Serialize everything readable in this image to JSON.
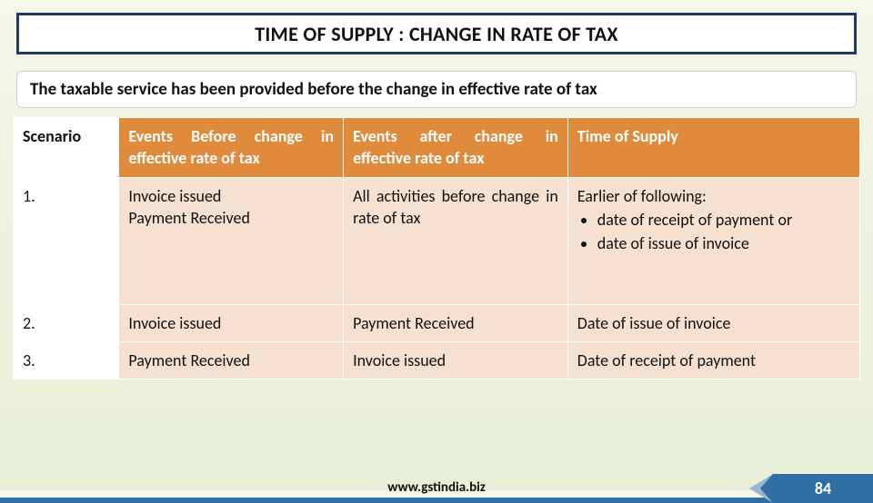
{
  "title": "TIME OF SUPPLY : CHANGE IN RATE OF TAX",
  "subheading": "The taxable service has been provided before the change in effective rate of tax",
  "table": {
    "columns": [
      "Scenario",
      "Events Before change in effective rate of tax",
      "Events after change in effective rate of tax",
      "Time of Supply"
    ],
    "rows": [
      {
        "scenario": "1.",
        "before": "Invoice issued\nPayment Received",
        "after": "All activities before change in rate of tax",
        "supply_lead": "Earlier of following:",
        "supply_bullets": [
          "date of receipt of payment or",
          "date of issue of invoice"
        ]
      },
      {
        "scenario": "2.",
        "before": "Invoice issued",
        "after": "Payment Received",
        "supply": "Date of issue of invoice"
      },
      {
        "scenario": "3.",
        "before": "Payment Received",
        "after": "Invoice issued",
        "supply": "Date of receipt of payment"
      }
    ],
    "header_bg": "#e08a3c",
    "header_fg": "#ffffff",
    "cell_bg": "#f6e1d0",
    "scenario_bg": "#ffffff",
    "border_color": "#ffffff",
    "font_size": 18
  },
  "footer": {
    "url": "www.gstindia.biz",
    "page": "84",
    "bar_color": "#2f6fa3"
  },
  "colors": {
    "title_frame": "#1e3a5f",
    "background_top": "#f5f8ec",
    "background_bottom": "#e8efd6"
  }
}
